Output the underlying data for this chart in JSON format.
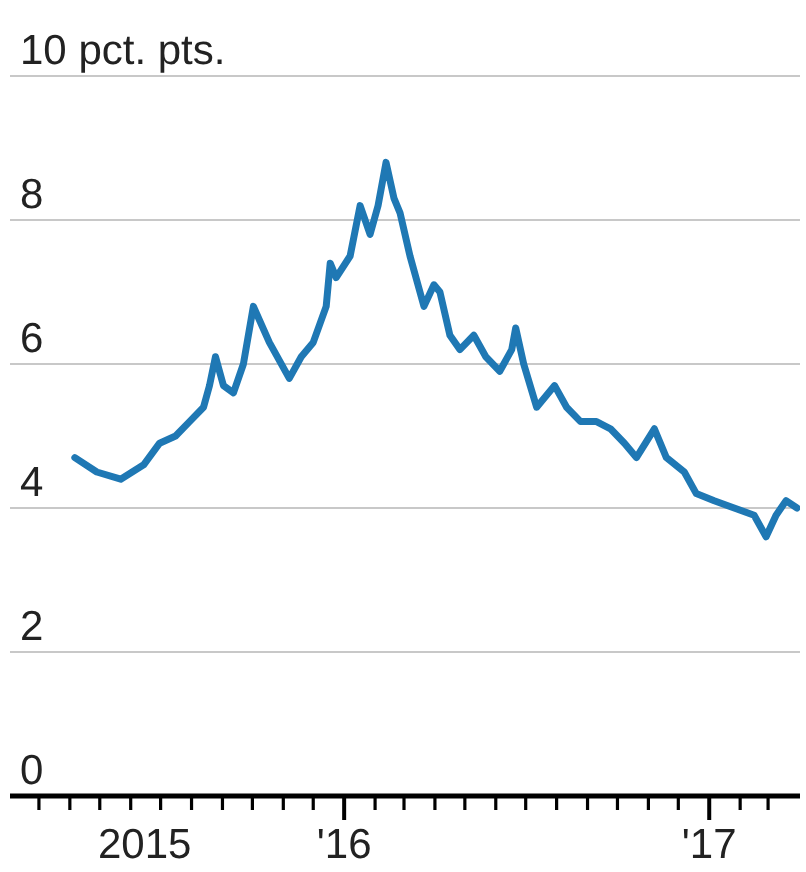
{
  "chart_data": {
    "type": "line",
    "x": [
      "2015-04-06",
      "2015-04-28",
      "2015-05-22",
      "2015-06-14",
      "2015-06-30",
      "2015-07-16",
      "2015-07-30",
      "2015-08-13",
      "2015-08-19",
      "2015-08-25",
      "2015-09-02",
      "2015-09-12",
      "2015-09-22",
      "2015-10-02",
      "2015-10-18",
      "2015-11-07",
      "2015-11-19",
      "2015-12-01",
      "2015-12-14",
      "2015-12-18",
      "2015-12-24",
      "2016-01-07",
      "2016-01-17",
      "2016-01-27",
      "2016-02-04",
      "2016-02-12",
      "2016-02-20",
      "2016-02-26",
      "2016-03-07",
      "2016-03-13",
      "2016-03-21",
      "2016-03-31",
      "2016-04-06",
      "2016-04-16",
      "2016-04-26",
      "2016-05-10",
      "2016-05-22",
      "2016-06-05",
      "2016-06-17",
      "2016-06-21",
      "2016-06-29",
      "2016-07-12",
      "2016-07-30",
      "2016-08-11",
      "2016-08-25",
      "2016-09-10",
      "2016-09-24",
      "2016-10-08",
      "2016-10-20",
      "2016-11-07",
      "2016-11-19",
      "2016-12-07",
      "2016-12-19",
      "2017-01-06",
      "2017-01-26",
      "2017-02-15",
      "2017-02-27",
      "2017-03-09",
      "2017-03-19",
      "2017-03-30"
    ],
    "series": [
      {
        "color": "#1f78b4",
        "values": [
          4.7,
          4.5,
          4.4,
          4.6,
          4.9,
          5.0,
          5.2,
          5.4,
          5.7,
          6.1,
          5.7,
          5.6,
          6.0,
          6.8,
          6.3,
          5.8,
          6.1,
          6.3,
          6.8,
          7.4,
          7.2,
          7.5,
          8.2,
          7.8,
          8.2,
          8.8,
          8.3,
          8.1,
          7.5,
          7.2,
          6.8,
          7.1,
          7.0,
          6.4,
          6.2,
          6.4,
          6.1,
          5.9,
          6.2,
          6.5,
          6.0,
          5.4,
          5.7,
          5.4,
          5.2,
          5.2,
          5.1,
          4.9,
          4.7,
          5.1,
          4.7,
          4.5,
          4.2,
          4.1,
          4.0,
          3.9,
          3.6,
          3.9,
          4.1,
          4.0
        ]
      }
    ],
    "xlim": [
      "2015-01-31",
      "2017-04-02"
    ],
    "xticks": [
      {
        "value": "2015-03-01",
        "label": null
      },
      {
        "value": "2015-04-01",
        "label": null
      },
      {
        "value": "2015-05-01",
        "label": null
      },
      {
        "value": "2015-06-01",
        "label": null
      },
      {
        "value": "2015-06-15",
        "label": "2015"
      },
      {
        "value": "2015-07-01",
        "label": null
      },
      {
        "value": "2015-08-01",
        "label": null
      },
      {
        "value": "2015-09-01",
        "label": null
      },
      {
        "value": "2015-10-01",
        "label": null
      },
      {
        "value": "2015-11-01",
        "label": null
      },
      {
        "value": "2015-12-01",
        "label": null
      },
      {
        "value": "2016-01-01",
        "label": "'16"
      },
      {
        "value": "2016-02-01",
        "label": null
      },
      {
        "value": "2016-03-01",
        "label": null
      },
      {
        "value": "2016-04-01",
        "label": null
      },
      {
        "value": "2016-05-01",
        "label": null
      },
      {
        "value": "2016-06-01",
        "label": null
      },
      {
        "value": "2016-07-01",
        "label": null
      },
      {
        "value": "2016-08-01",
        "label": null
      },
      {
        "value": "2016-09-01",
        "label": null
      },
      {
        "value": "2016-10-01",
        "label": null
      },
      {
        "value": "2016-11-01",
        "label": null
      },
      {
        "value": "2016-12-01",
        "label": null
      },
      {
        "value": "2017-01-01",
        "label": "'17"
      },
      {
        "value": "2017-02-01",
        "label": null
      },
      {
        "value": "2017-03-01",
        "label": null
      }
    ],
    "ylim": [
      0,
      10
    ],
    "yticks": [
      0,
      2,
      4,
      6,
      8,
      {
        "value": 10,
        "label": "10 pct. pts."
      }
    ],
    "grid": "y"
  }
}
